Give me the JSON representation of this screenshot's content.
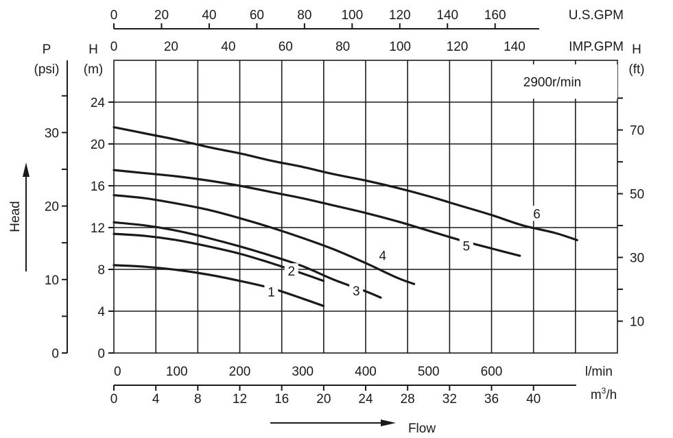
{
  "chart_data": {
    "type": "line",
    "title": "",
    "speed_label": "2900r/min",
    "x_axis": {
      "unit": "l/min",
      "range": [
        0,
        800
      ],
      "grid_step": 66.67,
      "ticks": [
        0,
        100,
        200,
        300,
        400,
        500,
        600
      ]
    },
    "x_axis_m3h": {
      "unit": "m³/h",
      "unit_base": "m",
      "unit_sup": "3",
      "unit_suffix": "/h",
      "ticks": [
        0,
        4,
        8,
        12,
        16,
        20,
        24,
        28,
        32,
        36,
        40
      ]
    },
    "x_axis_usgpm": {
      "unit": "U.S.GPM",
      "ticks": [
        0,
        20,
        40,
        60,
        80,
        100,
        120,
        140,
        160
      ]
    },
    "x_axis_impgpm": {
      "unit": "IMP.GPM",
      "ticks": [
        0,
        20,
        40,
        60,
        80,
        100,
        120,
        140
      ]
    },
    "y_axis": {
      "unit_top": "H",
      "unit_bottom": "(m)",
      "range": [
        0,
        28
      ],
      "ticks": [
        0,
        4,
        8,
        12,
        16,
        20,
        24
      ]
    },
    "y_axis_psi": {
      "unit_top": "P",
      "unit_bottom": "(psi)",
      "ticks": [
        0,
        10,
        20,
        30
      ]
    },
    "y_axis_ft": {
      "unit_top": "H",
      "unit_bottom": "(ft)",
      "ticks": [
        10,
        30,
        50,
        70
      ]
    },
    "ylabel": "Head",
    "xlabel": "Flow",
    "series": [
      {
        "name": "1",
        "label_at": [
          250,
          5.4
        ],
        "points": [
          [
            0,
            8.4
          ],
          [
            50,
            8.25
          ],
          [
            100,
            7.95
          ],
          [
            150,
            7.5
          ],
          [
            200,
            6.9
          ],
          [
            250,
            6.2
          ],
          [
            300,
            5.2
          ],
          [
            333,
            4.5
          ]
        ]
      },
      {
        "name": "2",
        "label_at": [
          282,
          7.4
        ],
        "points": [
          [
            0,
            11.4
          ],
          [
            50,
            11.2
          ],
          [
            100,
            10.8
          ],
          [
            150,
            10.2
          ],
          [
            200,
            9.5
          ],
          [
            250,
            8.6
          ],
          [
            300,
            7.6
          ],
          [
            333,
            6.9
          ]
        ]
      },
      {
        "name": "3",
        "label_at": [
          385,
          5.5
        ],
        "points": [
          [
            0,
            12.5
          ],
          [
            50,
            12.2
          ],
          [
            100,
            11.7
          ],
          [
            150,
            11.0
          ],
          [
            200,
            10.2
          ],
          [
            250,
            9.3
          ],
          [
            300,
            8.3
          ],
          [
            350,
            7.0
          ],
          [
            400,
            5.9
          ],
          [
            424,
            5.3
          ]
        ]
      },
      {
        "name": "4",
        "label_at": [
          427,
          8.9
        ],
        "points": [
          [
            0,
            15.1
          ],
          [
            50,
            14.8
          ],
          [
            100,
            14.3
          ],
          [
            150,
            13.7
          ],
          [
            200,
            12.9
          ],
          [
            250,
            12.0
          ],
          [
            300,
            11.0
          ],
          [
            350,
            9.9
          ],
          [
            400,
            8.6
          ],
          [
            450,
            7.2
          ],
          [
            477,
            6.6
          ]
        ]
      },
      {
        "name": "5",
        "label_at": [
          560,
          9.8
        ],
        "points": [
          [
            0,
            17.5
          ],
          [
            50,
            17.2
          ],
          [
            100,
            16.9
          ],
          [
            150,
            16.5
          ],
          [
            200,
            16.0
          ],
          [
            250,
            15.4
          ],
          [
            300,
            14.8
          ],
          [
            350,
            14.1
          ],
          [
            400,
            13.4
          ],
          [
            450,
            12.6
          ],
          [
            500,
            11.7
          ],
          [
            550,
            10.8
          ],
          [
            600,
            10.0
          ],
          [
            645,
            9.3
          ]
        ]
      },
      {
        "name": "6",
        "label_at": [
          672,
          12.9
        ],
        "points": [
          [
            0,
            21.6
          ],
          [
            50,
            21.0
          ],
          [
            100,
            20.4
          ],
          [
            150,
            19.7
          ],
          [
            200,
            19.1
          ],
          [
            250,
            18.4
          ],
          [
            300,
            17.8
          ],
          [
            350,
            17.1
          ],
          [
            400,
            16.5
          ],
          [
            450,
            15.8
          ],
          [
            500,
            15.0
          ],
          [
            550,
            14.1
          ],
          [
            600,
            13.2
          ],
          [
            650,
            12.2
          ],
          [
            700,
            11.5
          ],
          [
            736,
            10.8
          ]
        ]
      }
    ]
  }
}
